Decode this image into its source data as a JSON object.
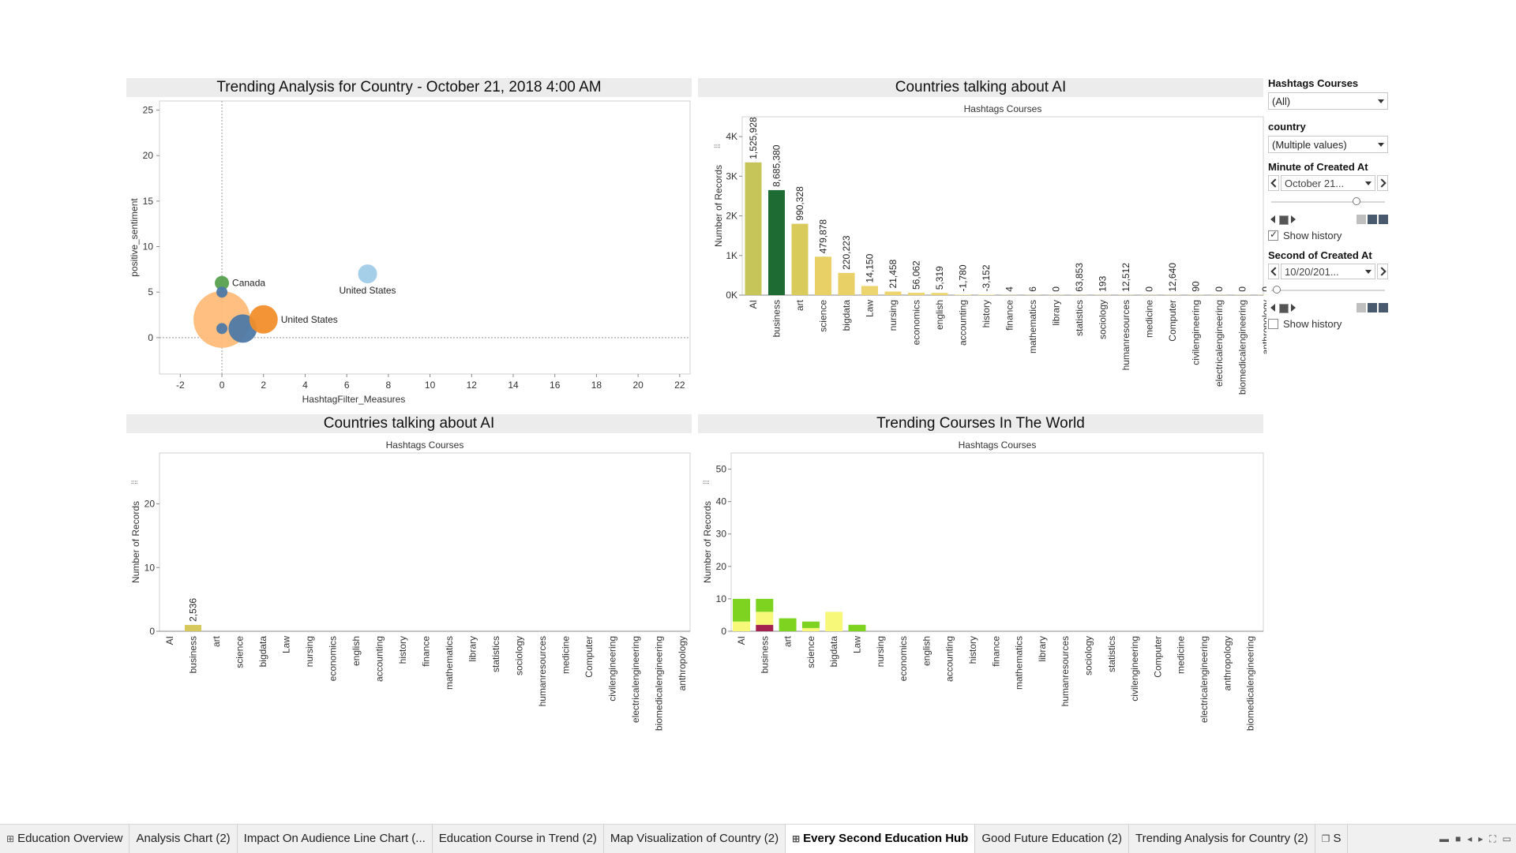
{
  "colors": {
    "panel_title_bg": "#ececec",
    "bubble_light_orange": "#ffbc79",
    "bubble_orange": "#f28e2b",
    "bubble_blue": "#4e79a7",
    "bubble_light_blue": "#a0cbe8",
    "bubble_green": "#59a14f",
    "bar_olive": "#c5c55a",
    "bar_dark_green": "#1e6b34",
    "bar_yellow": "#e8cf66",
    "stack_green": "#7ed321",
    "stack_light_yellow": "#f7f77a",
    "stack_maroon": "#a3214f"
  },
  "scatter_panel": {
    "title": "Trending Analysis for Country - October 21, 2018 4:00 AM",
    "chart_data": {
      "type": "scatter",
      "xlabel": "HashtagFilter_Measures",
      "ylabel": "positive_sentiment",
      "xlim": [
        -3,
        22.5
      ],
      "ylim": [
        -4,
        26
      ],
      "x_ticks": [
        -2,
        0,
        2,
        4,
        6,
        8,
        10,
        12,
        14,
        16,
        18,
        20,
        22
      ],
      "y_ticks": [
        0,
        5,
        10,
        15,
        20,
        25
      ],
      "points": [
        {
          "x": 0,
          "y": 2,
          "size": 36,
          "color": "#ffbc79",
          "label": ""
        },
        {
          "x": 0,
          "y": 6,
          "size": 9,
          "color": "#59a14f",
          "label": "Canada"
        },
        {
          "x": 0,
          "y": 5,
          "size": 7,
          "color": "#4e79a7",
          "label": ""
        },
        {
          "x": 0,
          "y": 1,
          "size": 7,
          "color": "#4e79a7",
          "label": ""
        },
        {
          "x": 1,
          "y": 1,
          "size": 18,
          "color": "#4e79a7",
          "label": ""
        },
        {
          "x": 2,
          "y": 2,
          "size": 18,
          "color": "#f28e2b",
          "label": "United States"
        },
        {
          "x": 7,
          "y": 7,
          "size": 12,
          "color": "#a0cbe8",
          "label": "United States"
        }
      ]
    }
  },
  "bar_panel_top": {
    "title": "Countries talking about AI",
    "chart_data": {
      "type": "bar",
      "header": "Hashtags Courses",
      "ylabel": "Number of Records",
      "ylim": [
        0,
        4500
      ],
      "y_ticks": [
        0,
        1000,
        2000,
        3000,
        4000
      ],
      "y_tick_labels": [
        "0K",
        "1K",
        "2K",
        "3K",
        "4K"
      ],
      "categories": [
        "AI",
        "business",
        "art",
        "science",
        "bigdata",
        "Law",
        "nursing",
        "economics",
        "english",
        "accounting",
        "history",
        "finance",
        "mathematics",
        "library",
        "statistics",
        "sociology",
        "humanresources",
        "medicine",
        "Computer",
        "civilengineering",
        "electricalengineering",
        "biomedicalengineering",
        "anthropology"
      ],
      "values": [
        3350,
        2650,
        1800,
        970,
        560,
        230,
        90,
        60,
        55,
        10,
        10,
        5,
        5,
        5,
        5,
        5,
        5,
        5,
        5,
        5,
        5,
        5,
        5
      ],
      "data_labels": [
        "1,525,928",
        "8,685,380",
        "990,328",
        "479,878",
        "220,223",
        "14,150",
        "21,458",
        "56,062",
        "5,319",
        "-1,780",
        "-3,152",
        "4",
        "6",
        "0",
        "63,853",
        "193",
        "12,512",
        "0",
        "12,640",
        "90",
        "0",
        "0",
        "0"
      ],
      "bar_colors": [
        "#c5c55a",
        "#1e6b34",
        "#d8cb5c",
        "#e8cf66",
        "#e8cf66",
        "#ecd56e",
        "#ecd56e",
        "#ecd56e",
        "#ecd56e",
        "#ecd56e",
        "#ecd56e",
        "#ecd56e",
        "#ecd56e",
        "#ecd56e",
        "#ecd56e",
        "#ecd56e",
        "#ecd56e",
        "#ecd56e",
        "#ecd56e",
        "#ecd56e",
        "#ecd56e",
        "#ecd56e",
        "#ecd56e"
      ]
    }
  },
  "bar_panel_bottom": {
    "title": "Countries talking about AI",
    "chart_data": {
      "type": "bar",
      "header": "Hashtags Courses",
      "ylabel": "Number of Records",
      "ylim": [
        0,
        28
      ],
      "y_ticks": [
        0,
        10,
        20
      ],
      "categories": [
        "AI",
        "business",
        "art",
        "science",
        "bigdata",
        "Law",
        "nursing",
        "economics",
        "english",
        "accounting",
        "history",
        "finance",
        "mathematics",
        "library",
        "statistics",
        "sociology",
        "humanresources",
        "medicine",
        "Computer",
        "civilengineering",
        "electricalengineering",
        "biomedicalengineering",
        "anthropology"
      ],
      "values": [
        0,
        1,
        0,
        0,
        0,
        0,
        0,
        0,
        0,
        0,
        0,
        0,
        0,
        0,
        0,
        0,
        0,
        0,
        0,
        0,
        0,
        0,
        0
      ],
      "data_labels": [
        "",
        "2,536",
        "",
        "",
        "",
        "",
        "",
        "",
        "",
        "",
        "",
        "",
        "",
        "",
        "",
        "",
        "",
        "",
        "",
        "",
        "",
        "",
        ""
      ],
      "bar_color": "#d6c85a"
    }
  },
  "stacked_panel": {
    "title": "Trending Courses In The World",
    "chart_data": {
      "type": "bar",
      "stacked": true,
      "header": "Hashtags Courses",
      "ylabel": "Number of Records",
      "ylim": [
        0,
        55
      ],
      "y_ticks": [
        0,
        10,
        20,
        30,
        40,
        50
      ],
      "categories": [
        "AI",
        "business",
        "art",
        "science",
        "bigdata",
        "Law",
        "nursing",
        "economics",
        "english",
        "accounting",
        "history",
        "finance",
        "mathematics",
        "library",
        "humanresources",
        "sociology",
        "statistics",
        "civilengineering",
        "Computer",
        "medicine",
        "electricalengineering",
        "anthropology",
        "biomedicalengineering"
      ],
      "series": [
        {
          "color": "#a3214f",
          "values": [
            0,
            2,
            0,
            0,
            0,
            0,
            0,
            0,
            0,
            0,
            0,
            0,
            0,
            0,
            0,
            0,
            0,
            0,
            0,
            0,
            0,
            0,
            0
          ]
        },
        {
          "color": "#f7f77a",
          "values": [
            3,
            4,
            0,
            1,
            6,
            0,
            0,
            0,
            0,
            0,
            0,
            0,
            0,
            0,
            0,
            0,
            0,
            0,
            0,
            0,
            0,
            0,
            0
          ]
        },
        {
          "color": "#7ed321",
          "values": [
            7,
            4,
            4,
            2,
            0,
            2,
            0,
            0,
            0,
            0,
            0,
            0,
            0,
            0,
            0,
            0,
            0,
            0,
            0,
            0,
            0,
            0,
            0
          ]
        }
      ]
    }
  },
  "filters": {
    "hashtags_label": "Hashtags Courses",
    "hashtags_value": "(All)",
    "country_label": "country",
    "country_value": "(Multiple values)",
    "minute_label": "Minute of Created At",
    "minute_value": "October 21...",
    "minute_slider": 0.75,
    "minute_show_history": "Show history",
    "minute_show_history_checked": true,
    "second_label": "Second of Created At",
    "second_value": "10/20/201...",
    "second_slider": 0.05,
    "second_show_history": "Show history",
    "second_show_history_checked": false
  },
  "tabs": [
    {
      "label": "Education Overview",
      "icon": "grid-icon",
      "active": false
    },
    {
      "label": "Analysis Chart (2)",
      "icon": "",
      "active": false
    },
    {
      "label": "Impact On Audience Line Chart (...",
      "icon": "",
      "active": false
    },
    {
      "label": "Education Course in Trend (2)",
      "icon": "",
      "active": false
    },
    {
      "label": "Map Visualization of Country (2)",
      "icon": "",
      "active": false
    },
    {
      "label": "Every Second Education Hub",
      "icon": "grid-icon",
      "active": true
    },
    {
      "label": "Good Future Education (2)",
      "icon": "",
      "active": false
    },
    {
      "label": "Trending Analysis for Country (2)",
      "icon": "",
      "active": false
    },
    {
      "label": "S",
      "icon": "book-icon",
      "active": false
    }
  ]
}
